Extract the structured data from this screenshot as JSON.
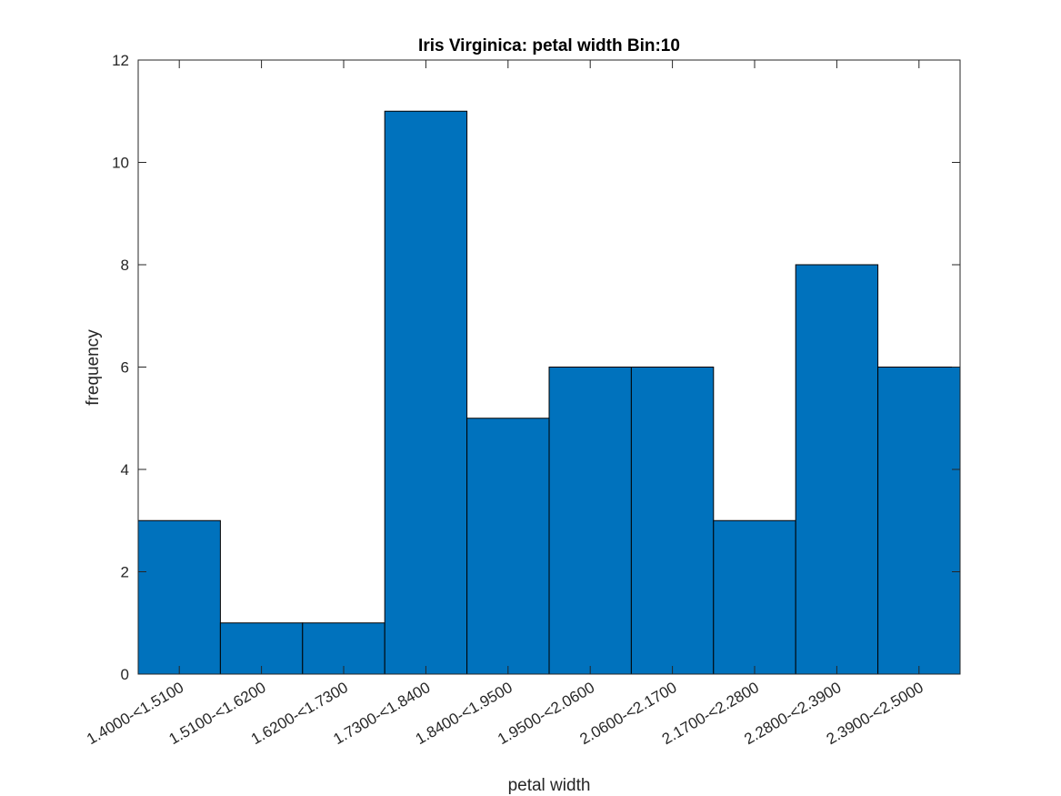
{
  "chart_data": {
    "type": "bar",
    "title": "Iris Virginica: petal width Bin:10",
    "xlabel": "petal width",
    "ylabel": "frequency",
    "categories": [
      "1.4000-<1.5100",
      "1.5100-<1.6200",
      "1.6200-<1.7300",
      "1.7300-<1.8400",
      "1.8400-<1.9500",
      "1.9500-<2.0600",
      "2.0600-<2.1700",
      "2.1700-<2.2800",
      "2.2800-<2.3900",
      "2.3900-<2.5000"
    ],
    "values": [
      3,
      1,
      1,
      11,
      5,
      6,
      6,
      3,
      8,
      6
    ],
    "ylim": [
      0,
      12
    ],
    "yticks": [
      "0",
      "2",
      "4",
      "6",
      "8",
      "10",
      "12"
    ],
    "grid": false,
    "legend": "none",
    "bar_color": "#0072BD",
    "edge_color": "#000000"
  }
}
